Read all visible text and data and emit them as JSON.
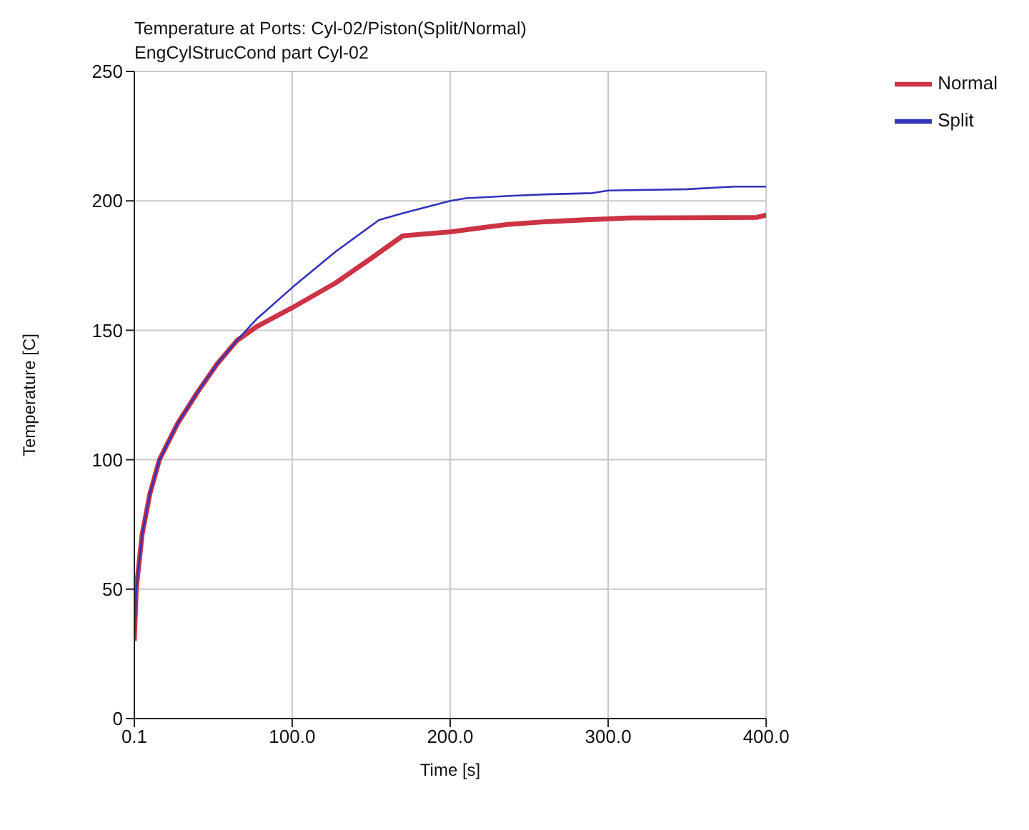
{
  "chart_data": {
    "type": "line",
    "title": "Temperature at Ports: Cyl-02/Piston(Split/Normal)",
    "subtitle": "EngCylStrucCond part Cyl-02",
    "xlabel": "Time [s]",
    "ylabel": "Temperature [C]",
    "xlim": [
      0.1,
      400
    ],
    "xticks": [
      0.1,
      {
        "value": 100,
        "label": "100.0"
      },
      {
        "value": 200,
        "label": "200.0"
      },
      {
        "value": 300,
        "label": "300.0"
      },
      {
        "value": 400,
        "label": "400.0"
      }
    ],
    "ylim": [
      0,
      250
    ],
    "yticks": [
      0,
      50,
      100,
      150,
      200,
      250
    ],
    "grid": true,
    "legend": "top right",
    "marker": "none",
    "line_style": "solid",
    "series": [
      {
        "name": "Normal",
        "color": "#cc3344",
        "x": [
          0.1,
          1.3,
          5,
          10,
          16,
          27.5,
          40,
          52.5,
          65,
          77.6,
          100,
          127.5,
          150,
          170,
          200,
          220.6,
          236.7,
          259,
          283,
          313,
          394,
          400
        ],
        "values": [
          30,
          50,
          71,
          87,
          100,
          114,
          126,
          137,
          146,
          151.4,
          158.7,
          168.3,
          177.8,
          186.5,
          188,
          189.7,
          190.9,
          191.9,
          192.6,
          193.4,
          193.6,
          194.5
        ]
      },
      {
        "name": "Split",
        "color": "#3333bb",
        "x": [
          0.1,
          1.3,
          5,
          10,
          16,
          27.5,
          40,
          52.5,
          65,
          77.6,
          100,
          127.5,
          155,
          170,
          200,
          210,
          240,
          260,
          290,
          300,
          350,
          380,
          400
        ],
        "values": [
          30,
          50,
          71,
          87,
          100,
          114,
          126,
          137,
          146,
          154.4,
          166.5,
          180.4,
          192.6,
          195.2,
          200,
          201,
          202,
          202.5,
          203,
          204,
          204.5,
          205.5,
          205.5
        ]
      }
    ]
  }
}
